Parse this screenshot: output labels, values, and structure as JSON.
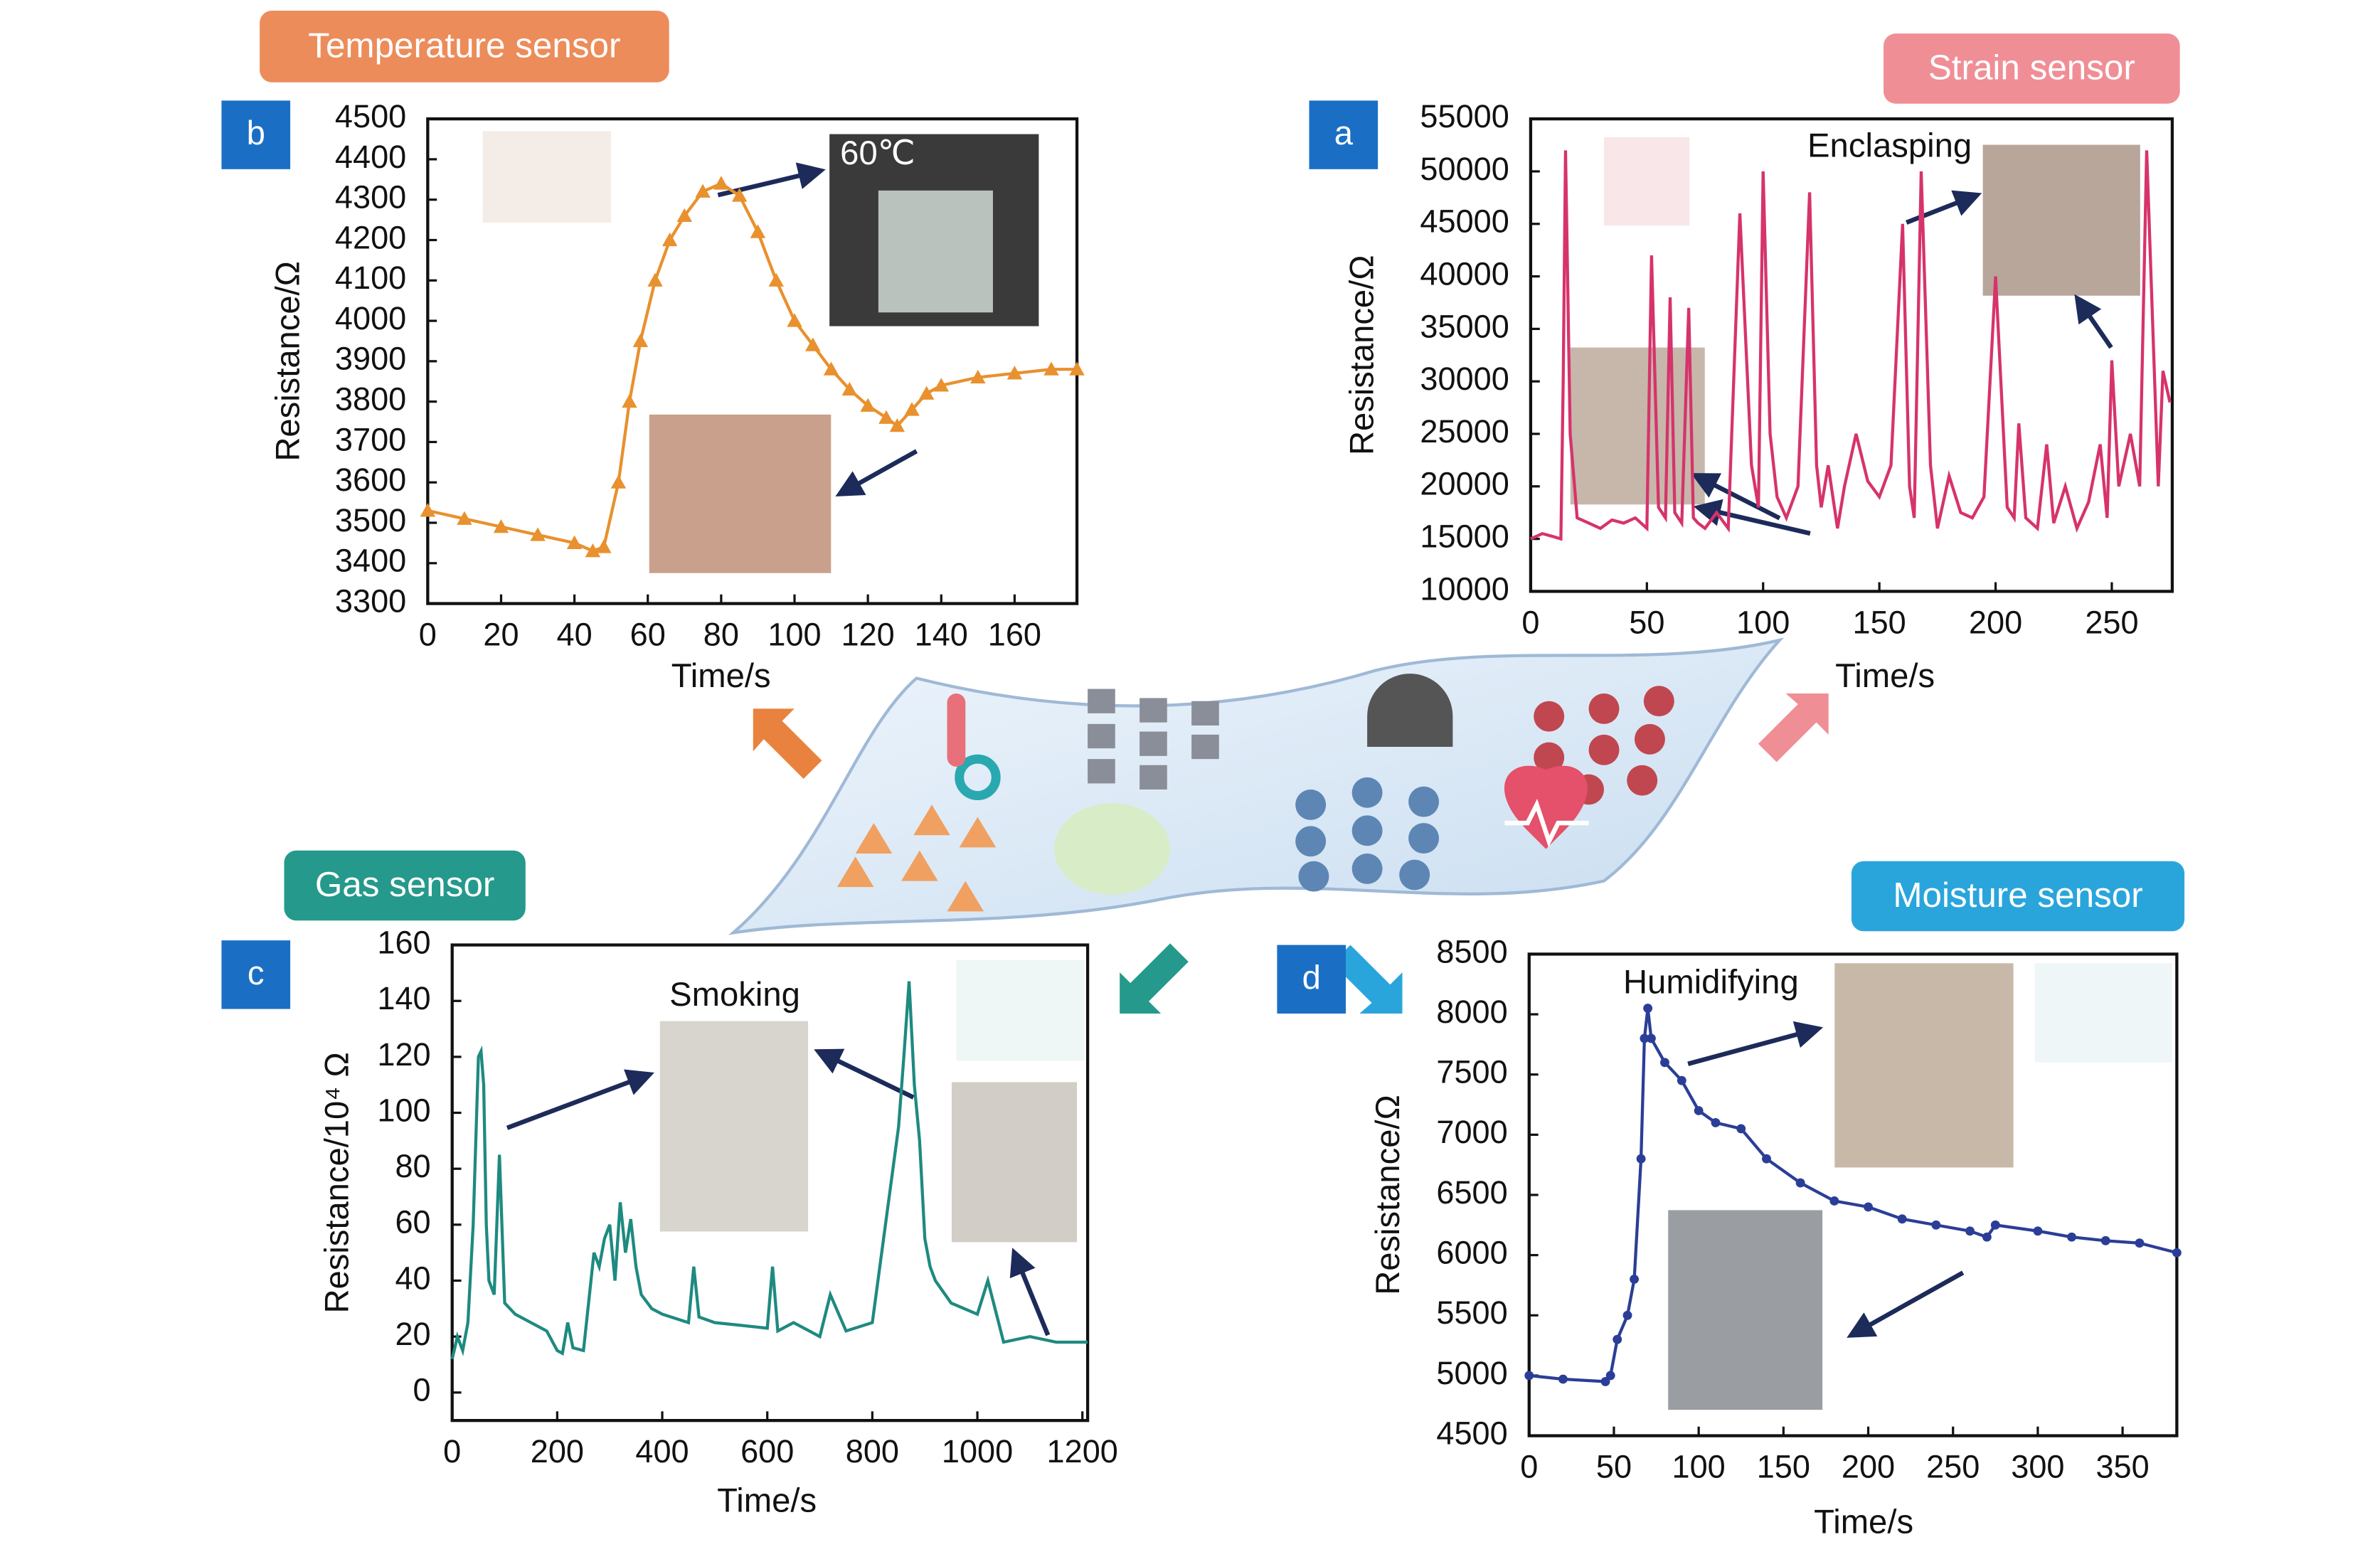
{
  "chart_data": [
    {
      "type": "line",
      "title": "Temperature sensor",
      "panel": "b",
      "annotation": "60℃",
      "xlabel": "Time/s",
      "ylabel": "Resistance/Ω",
      "color": "#e8912e",
      "marker": "triangle",
      "x": [
        0,
        10,
        20,
        30,
        40,
        45,
        48,
        52,
        55,
        58,
        62,
        66,
        70,
        75,
        80,
        85,
        90,
        95,
        100,
        105,
        110,
        115,
        120,
        125,
        128,
        132,
        136,
        140,
        150,
        160,
        170,
        177
      ],
      "values": [
        3530,
        3510,
        3490,
        3470,
        3450,
        3430,
        3440,
        3600,
        3800,
        3950,
        4100,
        4200,
        4260,
        4320,
        4340,
        4310,
        4220,
        4100,
        4000,
        3940,
        3880,
        3830,
        3790,
        3760,
        3740,
        3780,
        3820,
        3840,
        3860,
        3870,
        3880,
        3880
      ],
      "xlim": [
        0,
        177
      ],
      "xticks": [
        0,
        20,
        40,
        60,
        80,
        100,
        120,
        140,
        160
      ],
      "ylim": [
        3300,
        4500
      ],
      "yticks": [
        3300,
        3400,
        3500,
        3600,
        3700,
        3800,
        3900,
        4000,
        4100,
        4200,
        4300,
        4400,
        4500
      ]
    },
    {
      "type": "line",
      "title": "Strain sensor",
      "panel": "a",
      "annotation": "Enclasping",
      "xlabel": "Time/s",
      "ylabel": "Resistance/Ω",
      "color": "#d6336c",
      "marker": "none",
      "x": [
        0,
        5,
        10,
        13,
        14,
        15,
        17,
        20,
        25,
        30,
        35,
        40,
        45,
        50,
        52,
        55,
        58,
        60,
        62,
        65,
        68,
        70,
        72,
        75,
        80,
        85,
        90,
        95,
        98,
        100,
        103,
        106,
        110,
        115,
        120,
        123,
        125,
        128,
        132,
        135,
        140,
        145,
        150,
        155,
        160,
        163,
        165,
        168,
        172,
        175,
        180,
        185,
        190,
        195,
        200,
        205,
        208,
        210,
        213,
        218,
        222,
        225,
        230,
        235,
        240,
        245,
        248,
        250,
        253,
        258,
        262,
        265,
        270,
        272,
        275
      ],
      "values": [
        15000,
        15500,
        15200,
        15000,
        30000,
        52000,
        25000,
        17000,
        16500,
        16000,
        16800,
        16500,
        17000,
        16000,
        42000,
        18000,
        17000,
        38000,
        17500,
        16500,
        37000,
        17000,
        16500,
        16000,
        17500,
        16000,
        46000,
        22000,
        18000,
        50000,
        25000,
        19000,
        17000,
        20000,
        48000,
        22000,
        18000,
        22000,
        16000,
        20000,
        25000,
        20500,
        19000,
        22000,
        45000,
        20000,
        17000,
        50000,
        22000,
        16000,
        21000,
        17500,
        17000,
        19000,
        40000,
        18000,
        17000,
        26000,
        17000,
        16000,
        24000,
        16500,
        20000,
        16000,
        18500,
        24000,
        17000,
        32000,
        20000,
        25000,
        20000,
        52000,
        20000,
        31000,
        28000
      ],
      "xlim": [
        0,
        276
      ],
      "xticks": [
        0,
        50,
        100,
        150,
        200,
        250
      ],
      "ylim": [
        10000,
        55000
      ],
      "yticks": [
        10000,
        15000,
        20000,
        25000,
        30000,
        35000,
        40000,
        45000,
        50000,
        55000
      ]
    },
    {
      "type": "line",
      "title": "Gas sensor",
      "panel": "c",
      "annotation": "Smoking",
      "xlabel": "Time/s",
      "ylabel": "Resistance/10⁴ Ω",
      "color": "#1e8a80",
      "marker": "none",
      "x": [
        0,
        10,
        20,
        30,
        40,
        50,
        55,
        60,
        65,
        70,
        80,
        90,
        100,
        120,
        150,
        180,
        200,
        210,
        220,
        230,
        250,
        270,
        280,
        290,
        300,
        310,
        320,
        330,
        340,
        350,
        360,
        380,
        400,
        450,
        460,
        470,
        500,
        550,
        600,
        610,
        620,
        650,
        700,
        720,
        750,
        800,
        850,
        860,
        870,
        880,
        890,
        900,
        910,
        920,
        950,
        1000,
        1020,
        1050,
        1100,
        1150,
        1210
      ],
      "values": [
        12,
        20,
        15,
        25,
        60,
        120,
        122,
        110,
        60,
        40,
        35,
        85,
        32,
        28,
        25,
        22,
        15,
        14,
        25,
        16,
        15,
        50,
        45,
        55,
        60,
        40,
        68,
        50,
        62,
        45,
        35,
        30,
        28,
        25,
        45,
        27,
        25,
        24,
        23,
        45,
        22,
        25,
        20,
        35,
        22,
        25,
        95,
        120,
        147,
        110,
        90,
        55,
        45,
        40,
        32,
        28,
        40,
        18,
        20,
        18,
        18
      ],
      "xlim": [
        0,
        1210
      ],
      "xticks": [
        0,
        200,
        400,
        600,
        800,
        1000,
        1200
      ],
      "ylim": [
        -10,
        160
      ],
      "yticks": [
        0,
        20,
        40,
        60,
        80,
        100,
        120,
        140,
        160
      ]
    },
    {
      "type": "line",
      "title": "Moisture sensor",
      "panel": "d",
      "annotation": "Humidifying",
      "xlabel": "Time/s",
      "ylabel": "Resistance/Ω",
      "color": "#2b3e97",
      "marker": "circle",
      "x": [
        0,
        20,
        45,
        48,
        52,
        58,
        62,
        66,
        68,
        70,
        72,
        80,
        90,
        100,
        110,
        125,
        140,
        160,
        180,
        200,
        220,
        240,
        260,
        270,
        275,
        300,
        320,
        340,
        360,
        382
      ],
      "values": [
        5000,
        4970,
        4950,
        5000,
        5300,
        5500,
        5800,
        6800,
        7800,
        8050,
        7800,
        7600,
        7450,
        7200,
        7100,
        7050,
        6800,
        6600,
        6450,
        6400,
        6300,
        6250,
        6200,
        6150,
        6250,
        6200,
        6150,
        6120,
        6100,
        6020
      ],
      "xlim": [
        0,
        382
      ],
      "xticks": [
        0,
        50,
        100,
        150,
        200,
        250,
        300,
        350
      ],
      "ylim": [
        4500,
        8500
      ],
      "yticks": [
        4500,
        5000,
        5500,
        6000,
        6500,
        7000,
        7500,
        8000,
        8500
      ]
    }
  ]
}
